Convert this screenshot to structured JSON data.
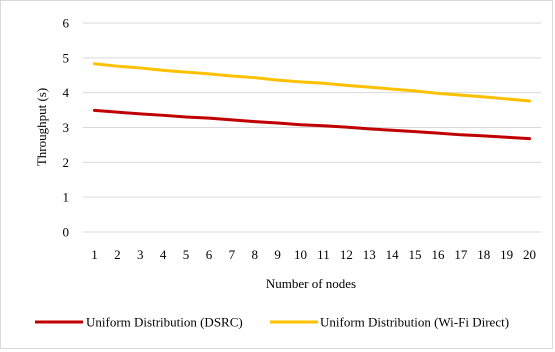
{
  "chart_data": {
    "type": "line",
    "title": "",
    "xlabel": "Number of nodes",
    "ylabel": "Throughput (s)",
    "x": [
      1,
      2,
      3,
      4,
      5,
      6,
      7,
      8,
      9,
      10,
      11,
      12,
      13,
      14,
      15,
      16,
      17,
      18,
      19,
      20
    ],
    "x_tick_labels": [
      "1",
      "2",
      "3",
      "4",
      "5",
      "6",
      "7",
      "8",
      "9",
      "10",
      "11",
      "12",
      "13",
      "14",
      "15",
      "16",
      "17",
      "18",
      "19",
      "20"
    ],
    "ylim": [
      0,
      6
    ],
    "y_ticks": [
      0,
      1,
      2,
      3,
      4,
      5,
      6
    ],
    "y_tick_labels": [
      "0",
      "1",
      "2",
      "3",
      "4",
      "5",
      "6"
    ],
    "grid": true,
    "legend_position": "bottom",
    "series": [
      {
        "name": "Uniform Distribution (DSRC)",
        "color": "#c00000",
        "values": [
          3.49,
          3.44,
          3.39,
          3.35,
          3.3,
          3.27,
          3.22,
          3.17,
          3.13,
          3.08,
          3.05,
          3.01,
          2.96,
          2.92,
          2.88,
          2.84,
          2.79,
          2.76,
          2.72,
          2.68
        ]
      },
      {
        "name": "Uniform Distribution (Wi-Fi Direct)",
        "color": "#ffc000",
        "values": [
          4.83,
          4.76,
          4.71,
          4.64,
          4.59,
          4.54,
          4.48,
          4.43,
          4.36,
          4.31,
          4.27,
          4.21,
          4.16,
          4.1,
          4.05,
          3.98,
          3.93,
          3.88,
          3.82,
          3.76
        ]
      }
    ]
  }
}
